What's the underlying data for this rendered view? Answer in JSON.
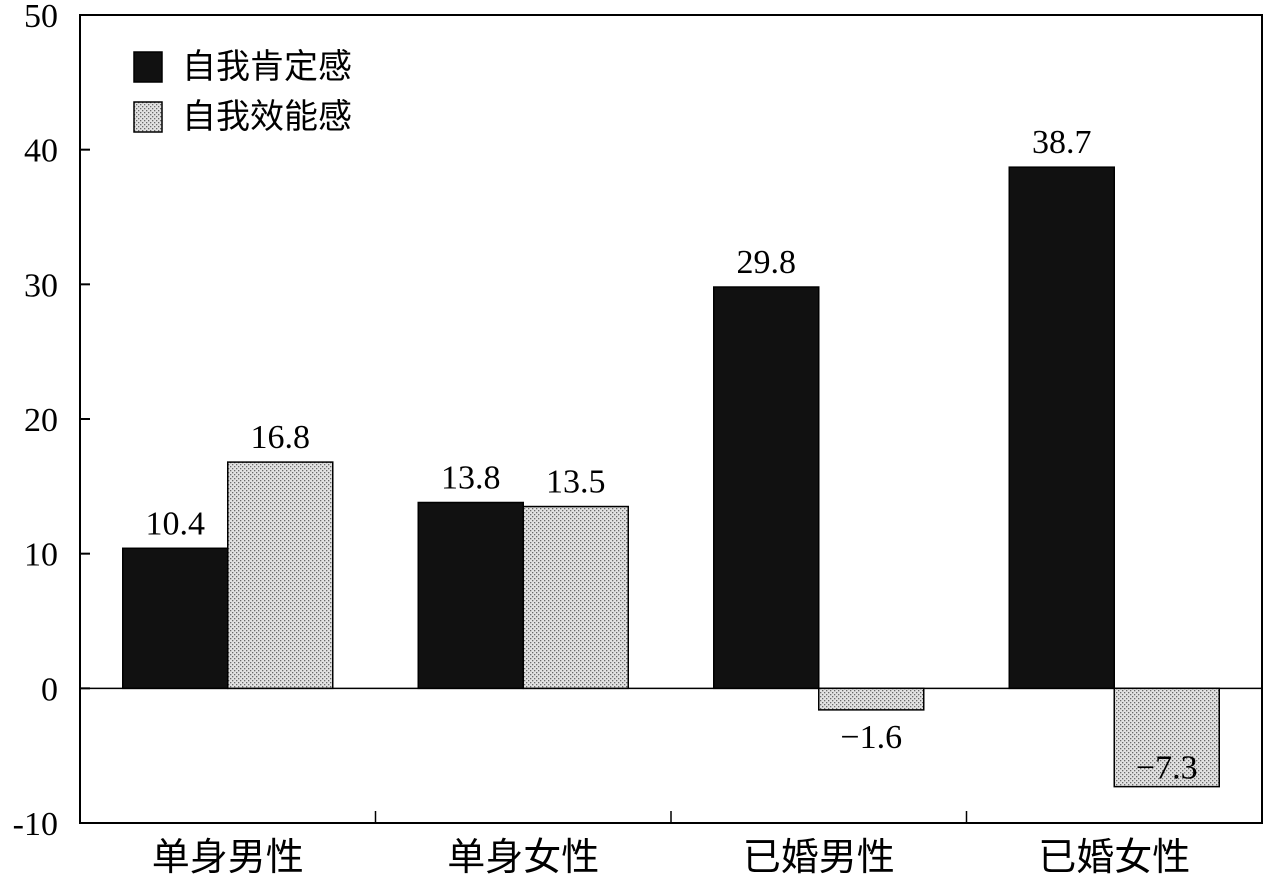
{
  "chart_data": {
    "type": "bar",
    "title": "",
    "xlabel": "",
    "ylabel": "",
    "categories": [
      "单身男性",
      "单身女性",
      "已婚男性",
      "已婚女性"
    ],
    "series": [
      {
        "name": "自我肯定感",
        "values": [
          10.4,
          13.8,
          29.8,
          38.7
        ],
        "labels": [
          "10.4",
          "13.8",
          "29.8",
          "38.7"
        ],
        "color": "#111111"
      },
      {
        "name": "自我效能感",
        "values": [
          16.8,
          13.5,
          -1.6,
          -7.3
        ],
        "labels": [
          "16.8",
          "13.5",
          "−1.6",
          "−7.3"
        ],
        "color": "#d6d6d6"
      }
    ],
    "ylim": [
      -10,
      50
    ],
    "yticks": [
      -10,
      0,
      10,
      20,
      30,
      40,
      50
    ],
    "ytick_labels": [
      "-10",
      "0",
      "10",
      "20",
      "30",
      "40",
      "50"
    ],
    "grid": false,
    "legend_position": "top-left"
  }
}
